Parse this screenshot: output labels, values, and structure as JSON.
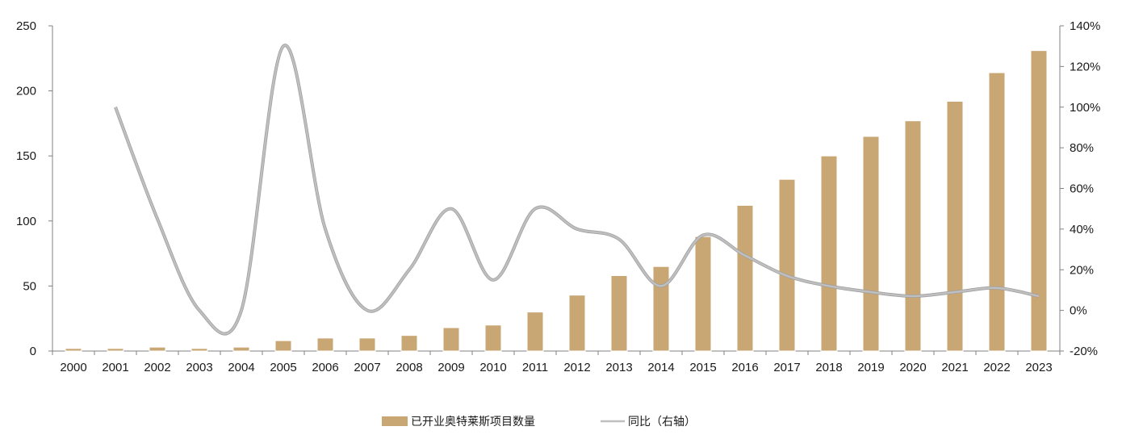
{
  "chart_data": {
    "type": "bar",
    "categories": [
      "2000",
      "2001",
      "2002",
      "2003",
      "2004",
      "2005",
      "2006",
      "2007",
      "2008",
      "2009",
      "2010",
      "2011",
      "2012",
      "2013",
      "2014",
      "2015",
      "2016",
      "2017",
      "2018",
      "2019",
      "2020",
      "2021",
      "2022",
      "2023"
    ],
    "series": [
      {
        "name": "已开业奥特莱斯项目数量",
        "type": "bar",
        "axis": "left",
        "color": "#c9a775",
        "values": [
          2,
          2,
          3,
          2,
          3,
          8,
          10,
          10,
          12,
          18,
          20,
          30,
          43,
          58,
          65,
          88,
          112,
          132,
          150,
          165,
          177,
          192,
          214,
          231
        ]
      },
      {
        "name": "同比（右轴）",
        "type": "line",
        "axis": "right",
        "color": "#bfbfbf",
        "values": [
          null,
          100,
          45,
          0,
          0,
          130,
          40,
          0,
          20,
          50,
          15,
          50,
          40,
          35,
          12,
          37,
          27,
          17,
          12,
          9,
          7,
          9,
          11,
          7
        ]
      }
    ],
    "y_left": {
      "min": 0,
      "max": 250,
      "ticks": [
        "0",
        "50",
        "100",
        "150",
        "200",
        "250"
      ]
    },
    "y_right": {
      "min": -20,
      "max": 140,
      "ticks": [
        "-20%",
        "0%",
        "20%",
        "40%",
        "60%",
        "80%",
        "100%",
        "120%",
        "140%"
      ]
    },
    "legend_position": "bottom-center",
    "grid": false
  }
}
